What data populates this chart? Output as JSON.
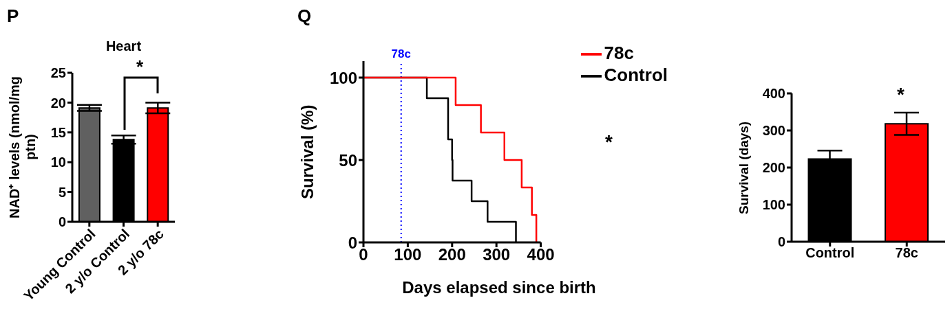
{
  "chart_data": [
    {
      "type": "bar",
      "title": "Heart",
      "ylabel": "NAD⁺ levels (nmol/mg ptn)",
      "categories": [
        "Young Control",
        "2 y/o Control",
        "2 y/o 78c"
      ],
      "values": [
        19.1,
        13.8,
        19.1
      ],
      "errors": [
        0.5,
        0.7,
        0.9
      ],
      "colors": [
        "#606060",
        "#000000",
        "#ff0000"
      ],
      "ylim": [
        0,
        25
      ],
      "yticks": [
        0,
        5,
        10,
        15,
        20,
        25
      ],
      "grid": false,
      "legend": false,
      "annotations": [
        "P",
        "*"
      ]
    },
    {
      "type": "step",
      "xlabel": "Days elapsed since birth",
      "ylabel": "Survival (%)",
      "series": [
        {
          "name": "Control",
          "color": "#000000",
          "x": [
            0,
            143,
            191,
            200,
            201,
            244,
            280,
            344
          ],
          "values": [
            100,
            87.5,
            62.5,
            50,
            37.5,
            25,
            12.5,
            0
          ]
        },
        {
          "name": "78c",
          "color": "#ff0000",
          "x": [
            0,
            208,
            265,
            318,
            357,
            380,
            390
          ],
          "values": [
            100,
            83.3,
            66.7,
            50,
            33.3,
            16.7,
            0
          ]
        }
      ],
      "xlim": [
        0,
        400
      ],
      "xticks": [
        0,
        100,
        200,
        300,
        400
      ],
      "ylim": [
        0,
        110
      ],
      "yticks": [
        0,
        50,
        100
      ],
      "ref_lines": [
        {
          "axis": "x",
          "value": 85,
          "label": "78c",
          "color": "#0000ff",
          "line_style": "dotted"
        }
      ],
      "legend": "top right",
      "marker": "none",
      "grid": false,
      "annotations": [
        "Q",
        "*"
      ]
    },
    {
      "type": "bar",
      "ylabel": "Survival (days)",
      "categories": [
        "Control",
        "78c"
      ],
      "values": [
        223,
        318
      ],
      "errors": [
        23,
        30
      ],
      "colors": [
        "#000000",
        "#ff0000"
      ],
      "ylim": [
        0,
        400
      ],
      "yticks": [
        0,
        100,
        200,
        300,
        400
      ],
      "grid": false,
      "legend": false,
      "annotations": [
        "*"
      ]
    }
  ]
}
